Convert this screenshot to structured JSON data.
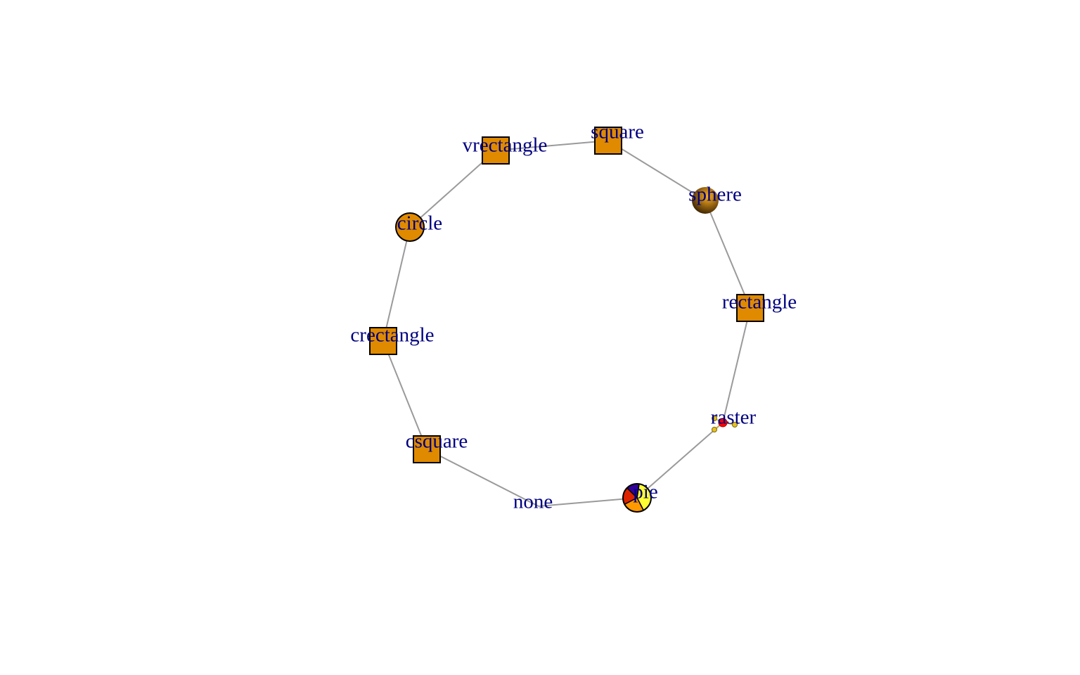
{
  "colors": {
    "node_fill": "#e08a00",
    "node_stroke": "#000000",
    "edge": "#9a9a9a",
    "label": "#000080",
    "pie_slices": [
      "#ffff33",
      "#ff9900",
      "#dd2200",
      "#330099"
    ],
    "raster_main": "#ff0000",
    "raster_small": "#e8c020",
    "sphere_highlight": "#ffb020",
    "sphere_shadow": "#2a1600"
  },
  "graph": {
    "layout": "ring",
    "nodes": [
      {
        "id": "square",
        "label": "square",
        "shape": "square"
      },
      {
        "id": "sphere",
        "label": "sphere",
        "shape": "sphere"
      },
      {
        "id": "rectangle",
        "label": "rectangle",
        "shape": "rectangle"
      },
      {
        "id": "raster",
        "label": "raster",
        "shape": "raster"
      },
      {
        "id": "pie",
        "label": "pie",
        "shape": "pie",
        "pie_values": [
          40,
          25,
          20,
          15
        ]
      },
      {
        "id": "none",
        "label": "none",
        "shape": "none"
      },
      {
        "id": "csquare",
        "label": "csquare",
        "shape": "csquare"
      },
      {
        "id": "crectangle",
        "label": "crectangle",
        "shape": "crectangle"
      },
      {
        "id": "circle",
        "label": "circle",
        "shape": "circle"
      },
      {
        "id": "vrectangle",
        "label": "vrectangle",
        "shape": "vrectangle"
      }
    ],
    "edges": [
      [
        "square",
        "sphere"
      ],
      [
        "sphere",
        "rectangle"
      ],
      [
        "rectangle",
        "raster"
      ],
      [
        "raster",
        "pie"
      ],
      [
        "pie",
        "none"
      ],
      [
        "none",
        "csquare"
      ],
      [
        "csquare",
        "crectangle"
      ],
      [
        "crectangle",
        "circle"
      ],
      [
        "circle",
        "vrectangle"
      ],
      [
        "vrectangle",
        "square"
      ]
    ]
  }
}
